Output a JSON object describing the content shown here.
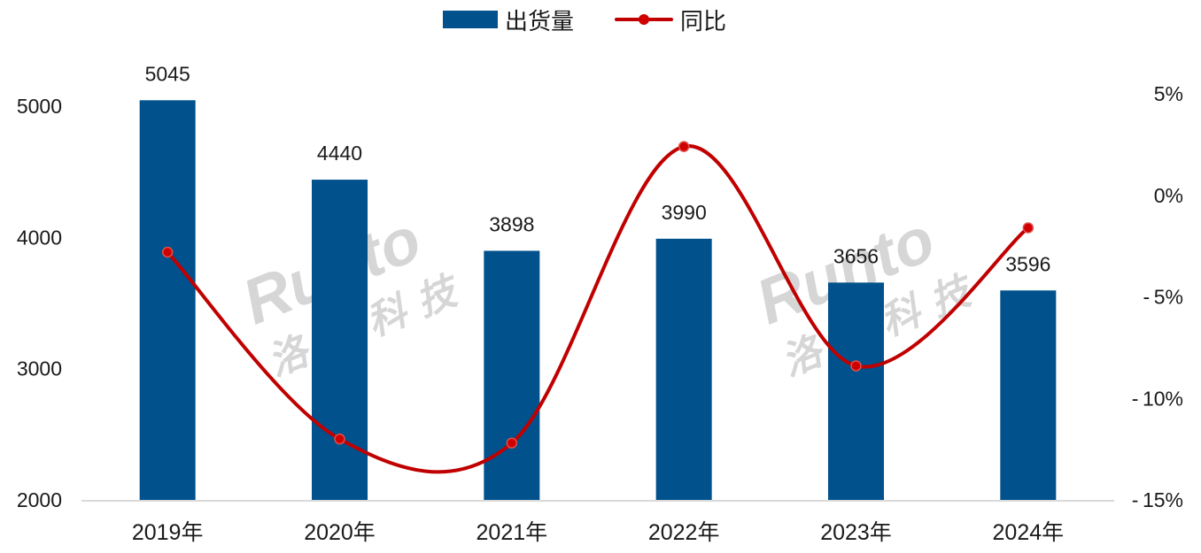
{
  "legend": {
    "bar_label": "出货量",
    "line_label": "同比"
  },
  "watermark": {
    "text_latin": "Runto",
    "text_cn": "洛图科技"
  },
  "colors": {
    "bar": "#00518C",
    "line": "#C00000",
    "marker": "#D00000",
    "axis_line": "#D9D9D9"
  },
  "chart_data": {
    "type": "bar+line",
    "title": "",
    "categories": [
      "2019年",
      "2020年",
      "2021年",
      "2022年",
      "2023年",
      "2024年"
    ],
    "series": [
      {
        "name": "出货量",
        "type": "bar",
        "axis": "left",
        "values": [
          5045,
          4440,
          3898,
          3990,
          3656,
          3596
        ]
      },
      {
        "name": "同比",
        "type": "line",
        "axis": "right",
        "smooth": true,
        "values": [
          -2.8,
          -12.0,
          -12.2,
          2.4,
          -8.4,
          -1.6
        ],
        "unit": "%"
      }
    ],
    "left_axis": {
      "min": 2000,
      "max": 5000,
      "ticks": [
        "2000",
        "3000",
        "4000",
        "5000"
      ]
    },
    "right_axis": {
      "min": -15,
      "max": 5,
      "ticks": [
        "5%",
        "0%",
        "-5%",
        "-10%",
        "-15%"
      ]
    },
    "xlabel": "",
    "ylabel": "",
    "grid": false,
    "legend_position": "top"
  }
}
